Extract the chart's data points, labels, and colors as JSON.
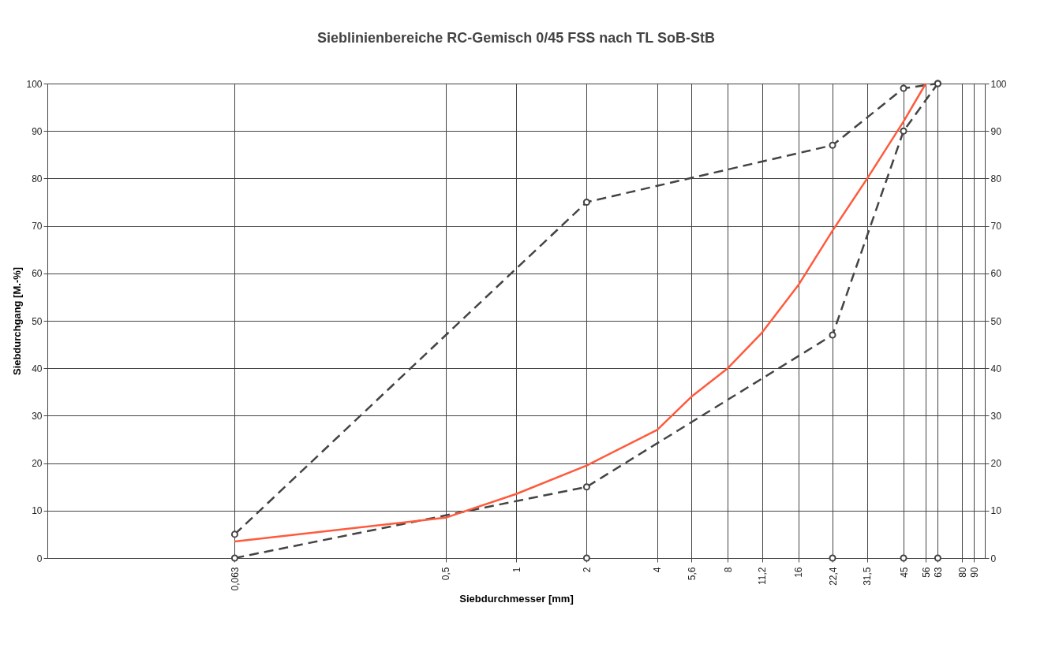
{
  "chart_data": {
    "type": "line",
    "title": "Sieblinienbereiche RC-Gemisch 0/45 FSS nach TL SoB-StB",
    "xlabel": "Siebdurchmesser [mm]",
    "ylabel": "Siebdurchgang [M.-%]",
    "log": "x",
    "xlim": [
      0.01,
      100
    ],
    "xticks": [
      {
        "value": 0.063,
        "label": "0,063"
      },
      {
        "value": 0.5,
        "label": "0,5"
      },
      1,
      2,
      4,
      {
        "value": 5.6,
        "label": "5,6"
      },
      8,
      {
        "value": 11.2,
        "label": "11,2"
      },
      16,
      {
        "value": 22.4,
        "label": "22,4"
      },
      {
        "value": 31.5,
        "label": "31,5"
      },
      45,
      56,
      63,
      80,
      90
    ],
    "ylim": [
      0,
      100
    ],
    "yticks": [
      0,
      10,
      20,
      30,
      40,
      50,
      60,
      70,
      80,
      90,
      100
    ],
    "y2lim": [
      0,
      100
    ],
    "y2ticks": [
      0,
      10,
      20,
      30,
      40,
      50,
      60,
      70,
      80,
      90,
      100
    ],
    "grid": true,
    "series": [
      {
        "color": "#444444",
        "line_style": "dashed",
        "marker": "circle",
        "x": [
          0.063,
          2,
          22.4,
          45,
          63
        ],
        "values": [
          5,
          75,
          87,
          99,
          100
        ]
      },
      {
        "color": "#444444",
        "line_style": "dashed",
        "marker": "circle",
        "x": [
          0.063,
          2,
          22.4,
          45,
          63
        ],
        "values": [
          0,
          15,
          47,
          90,
          100
        ]
      },
      {
        "color": "#ff5a3c",
        "line_style": "solid",
        "marker": "none",
        "x": [
          0.063,
          0.5,
          1,
          2,
          4,
          5.6,
          8,
          11.2,
          16,
          22.4,
          31.5,
          45,
          56
        ],
        "values": [
          3.5,
          8.5,
          13.5,
          19.5,
          27,
          34,
          40,
          47.5,
          57.5,
          69,
          80,
          92,
          100
        ]
      },
      {
        "type": "scatter",
        "color": "#444444",
        "marker": "circle",
        "x": [
          2,
          22.4,
          45,
          63
        ],
        "values": [
          0,
          0,
          0,
          0
        ]
      }
    ]
  }
}
